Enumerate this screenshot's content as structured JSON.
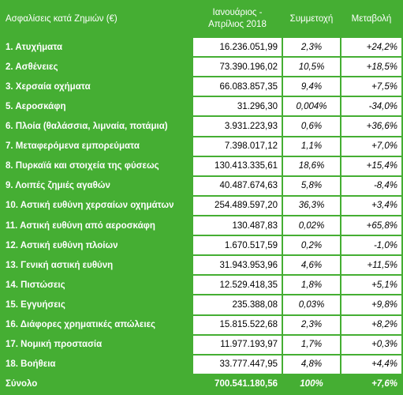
{
  "table": {
    "header": [
      "Ασφαλίσεις κατά Ζημιών (€)",
      "Ιανουάριος - Απρίλιος 2018",
      "Συμμετοχή",
      "Μεταβολή"
    ],
    "rows": [
      [
        "1. Ατυχήματα",
        "16.236.051,99",
        "2,3%",
        "+24,2%"
      ],
      [
        "2. Ασθένειες",
        "73.390.196,02",
        "10,5%",
        "+18,5%"
      ],
      [
        "3. Χερσαία οχήματα",
        "66.083.857,35",
        "9,4%",
        "+7,5%"
      ],
      [
        "5. Αεροσκάφη",
        "31.296,30",
        "0,004%",
        "-34,0%"
      ],
      [
        "6. Πλοία (θαλάσσια, λιμναία, ποτάμια)",
        "3.931.223,93",
        "0,6%",
        "+36,6%"
      ],
      [
        "7. Μεταφερόμενα εμπορεύματα",
        "7.398.017,12",
        "1,1%",
        "+7,0%"
      ],
      [
        "8. Πυρκαϊά και στοιχεία της φύσεως",
        "130.413.335,61",
        "18,6%",
        "+15,4%"
      ],
      [
        "9. Λοιπές ζημιές αγαθών",
        "40.487.674,63",
        "5,8%",
        "-8,4%"
      ],
      [
        "10. Αστική ευθύνη χερσαίων οχημάτων",
        "254.489.597,20",
        "36,3%",
        "+3,4%"
      ],
      [
        "11. Αστική ευθύνη από αεροσκάφη",
        "130.487,83",
        "0,02%",
        "+65,8%"
      ],
      [
        "12. Αστική ευθύνη πλοίων",
        "1.670.517,59",
        "0,2%",
        "-1,0%"
      ],
      [
        "13. Γενική αστική ευθύνη",
        "31.943.953,96",
        "4,6%",
        "+11,5%"
      ],
      [
        "14. Πιστώσεις",
        "12.529.418,35",
        "1,8%",
        "+5,1%"
      ],
      [
        "15. Εγγυήσεις",
        "235.388,08",
        "0,03%",
        "+9,8%"
      ],
      [
        "16. Διάφορες χρηματικές απώλειες",
        "15.815.522,68",
        "2,3%",
        "+8,2%"
      ],
      [
        "17. Νομική προστασία",
        "11.977.193,97",
        "1,7%",
        "+0,3%"
      ],
      [
        "18. Βοήθεια",
        "33.777.447,95",
        "4,8%",
        "+4,4%"
      ]
    ],
    "total": [
      "Σύνολο",
      "700.541.180,56",
      "100%",
      "+7,6%"
    ]
  }
}
